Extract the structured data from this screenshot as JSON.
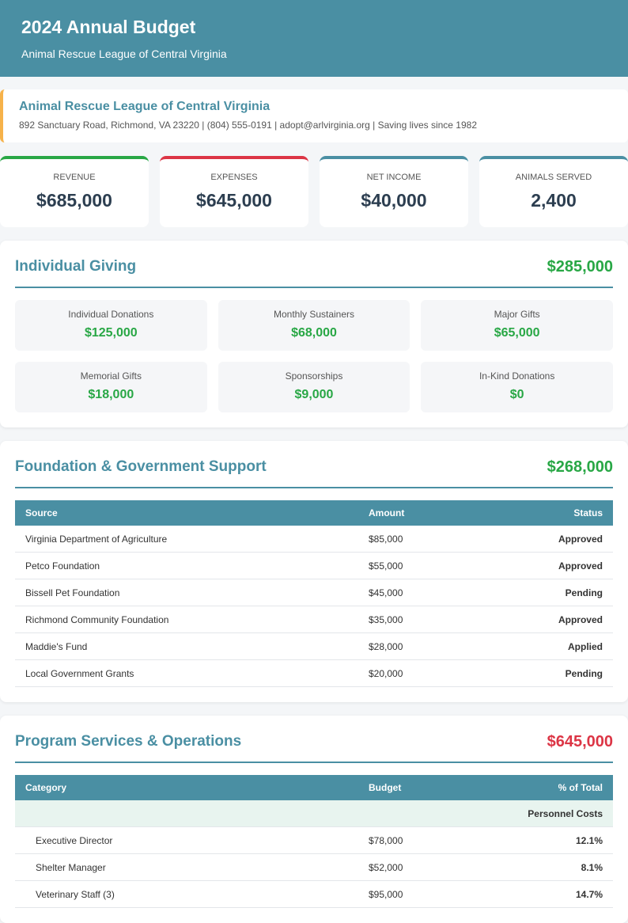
{
  "header": {
    "title": "2024 Annual Budget",
    "subtitle": "Animal Rescue League of Central Virginia"
  },
  "organization": {
    "name": "Animal Rescue League of Central Virginia",
    "details": "892 Sanctuary Road, Richmond, VA 23220 | (804) 555-0191 | adopt@arlvirginia.org | Saving lives since 1982"
  },
  "summary": [
    {
      "label": "REVENUE",
      "value": "$685,000"
    },
    {
      "label": "EXPENSES",
      "value": "$645,000"
    },
    {
      "label": "NET INCOME",
      "value": "$40,000"
    },
    {
      "label": "ANIMALS SERVED",
      "value": "2,400"
    }
  ],
  "individual_giving": {
    "title": "Individual Giving",
    "total": "$285,000",
    "items": [
      {
        "label": "Individual Donations",
        "amount": "$125,000"
      },
      {
        "label": "Monthly Sustainers",
        "amount": "$68,000"
      },
      {
        "label": "Major Gifts",
        "amount": "$65,000"
      },
      {
        "label": "Memorial Gifts",
        "amount": "$18,000"
      },
      {
        "label": "Sponsorships",
        "amount": "$9,000"
      },
      {
        "label": "In-Kind Donations",
        "amount": "$0"
      }
    ]
  },
  "foundation_support": {
    "title": "Foundation & Government Support",
    "total": "$268,000",
    "columns": [
      "Source",
      "Amount",
      "Status"
    ],
    "rows": [
      [
        "Virginia Department of Agriculture",
        "$85,000",
        "Approved"
      ],
      [
        "Petco Foundation",
        "$55,000",
        "Approved"
      ],
      [
        "Bissell Pet Foundation",
        "$45,000",
        "Pending"
      ],
      [
        "Richmond Community Foundation",
        "$35,000",
        "Approved"
      ],
      [
        "Maddie's Fund",
        "$28,000",
        "Applied"
      ],
      [
        "Local Government Grants",
        "$20,000",
        "Pending"
      ]
    ]
  },
  "program_services": {
    "title": "Program Services & Operations",
    "total": "$645,000",
    "columns": [
      "Category",
      "Budget",
      "% of Total"
    ],
    "groups": [
      {
        "name": "Personnel Costs",
        "rows": [
          [
            "Executive Director",
            "$78,000",
            "12.1%"
          ],
          [
            "Shelter Manager",
            "$52,000",
            "8.1%"
          ],
          [
            "Veterinary Staff (3)",
            "$95,000",
            "14.7%"
          ]
        ]
      }
    ]
  }
}
